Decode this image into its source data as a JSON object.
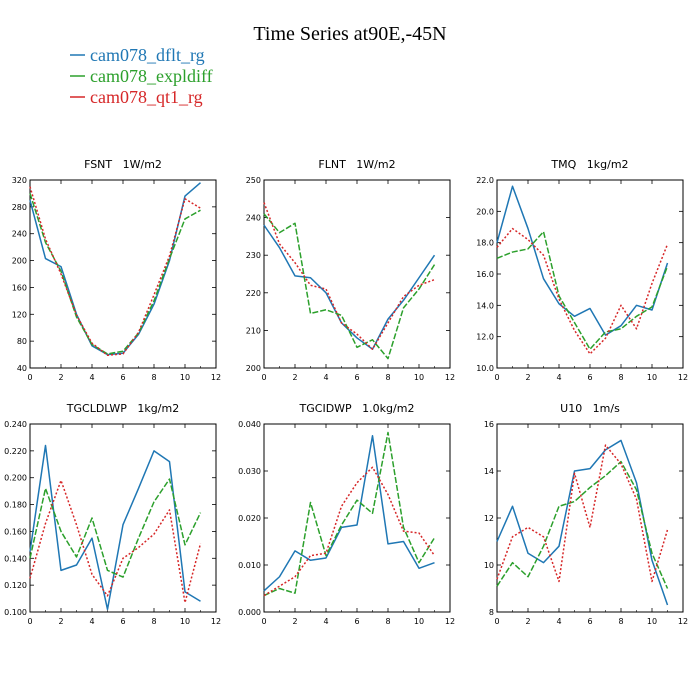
{
  "figure": {
    "title": "Time Series at90E,-45N",
    "legend": [
      {
        "name": "cam078_dflt_rg",
        "color": "#1f77b4"
      },
      {
        "name": "cam078_expldiff",
        "color": "#2ca02c"
      },
      {
        "name": "cam078_qt1_rg",
        "color": "#d62728"
      }
    ]
  },
  "chart_data": [
    {
      "type": "line",
      "var": "FSNT",
      "units": "1W/m2",
      "x": [
        0,
        1,
        2,
        3,
        4,
        5,
        6,
        7,
        8,
        9,
        10,
        11
      ],
      "xlim": [
        0,
        12
      ],
      "xticks": [
        0,
        2,
        4,
        6,
        8,
        10,
        12
      ],
      "ylim": [
        40,
        320
      ],
      "yticks": [
        40,
        80,
        120,
        160,
        200,
        240,
        280,
        320
      ],
      "ytick_labels": [
        "40",
        "80",
        "120",
        "160",
        "200",
        "240",
        "280",
        "320"
      ],
      "series": [
        {
          "name": "cam078_dflt_rg",
          "values": [
            290,
            203,
            191,
            120,
            73,
            60,
            62,
            90,
            135,
            200,
            296,
            316
          ]
        },
        {
          "name": "cam078_expldiff",
          "values": [
            300,
            227,
            184,
            116,
            75,
            61,
            65,
            92,
            140,
            203,
            262,
            275
          ]
        },
        {
          "name": "cam078_qt1_rg",
          "values": [
            310,
            232,
            180,
            119,
            77,
            59,
            61,
            93,
            149,
            207,
            292,
            278
          ]
        }
      ]
    },
    {
      "type": "line",
      "var": "FLNT",
      "units": "1W/m2",
      "x": [
        0,
        1,
        2,
        3,
        4,
        5,
        6,
        7,
        8,
        9,
        10,
        11
      ],
      "xlim": [
        0,
        12
      ],
      "xticks": [
        0,
        2,
        4,
        6,
        8,
        10,
        12
      ],
      "ylim": [
        200,
        250
      ],
      "yticks": [
        200,
        210,
        220,
        230,
        240,
        250
      ],
      "ytick_labels": [
        "200",
        "210",
        "220",
        "230",
        "240",
        "250"
      ],
      "series": [
        {
          "name": "cam078_dflt_rg",
          "values": [
            238,
            232,
            224.5,
            224,
            220,
            212,
            208,
            205,
            213,
            218,
            224,
            230
          ]
        },
        {
          "name": "cam078_expldiff",
          "values": [
            241,
            236,
            238.5,
            214.5,
            215.5,
            214,
            205.5,
            207.5,
            202.5,
            216,
            221,
            227.5
          ]
        },
        {
          "name": "cam078_qt1_rg",
          "values": [
            244,
            233,
            228,
            222,
            221,
            212,
            209,
            205,
            212,
            219,
            222,
            223.5
          ]
        }
      ]
    },
    {
      "type": "line",
      "var": "TMQ",
      "units": "1kg/m2",
      "x": [
        0,
        1,
        2,
        3,
        4,
        5,
        6,
        7,
        8,
        9,
        10,
        11
      ],
      "xlim": [
        0,
        12
      ],
      "xticks": [
        0,
        2,
        4,
        6,
        8,
        10,
        12
      ],
      "ylim": [
        10,
        22
      ],
      "yticks": [
        10,
        12,
        14,
        16,
        18,
        20,
        22
      ],
      "ytick_labels": [
        "10.0",
        "12.0",
        "14.0",
        "16.0",
        "18.0",
        "20.0",
        "22.0"
      ],
      "series": [
        {
          "name": "cam078_dflt_rg",
          "values": [
            18.0,
            21.6,
            18.9,
            15.7,
            14.1,
            13.3,
            13.8,
            12.1,
            12.7,
            14.0,
            13.7,
            16.7
          ]
        },
        {
          "name": "cam078_expldiff",
          "values": [
            17.0,
            17.4,
            17.6,
            18.7,
            14.6,
            12.9,
            11.2,
            12.3,
            12.5,
            13.3,
            13.9,
            16.5
          ]
        },
        {
          "name": "cam078_qt1_rg",
          "values": [
            17.7,
            18.9,
            18.2,
            17.2,
            14.4,
            12.4,
            10.9,
            11.9,
            14.0,
            12.5,
            15.4,
            17.9
          ]
        }
      ]
    },
    {
      "type": "line",
      "var": "TGCLDLWP",
      "units": "1kg/m2",
      "x": [
        0,
        1,
        2,
        3,
        4,
        5,
        6,
        7,
        8,
        9,
        10,
        11
      ],
      "xlim": [
        0,
        12
      ],
      "xticks": [
        0,
        2,
        4,
        6,
        8,
        10,
        12
      ],
      "ylim": [
        0.1,
        0.24
      ],
      "yticks": [
        0.1,
        0.12,
        0.14,
        0.16,
        0.18,
        0.2,
        0.22,
        0.24
      ],
      "ytick_labels": [
        "0.100",
        "0.120",
        "0.140",
        "0.160",
        "0.180",
        "0.200",
        "0.220",
        "0.240"
      ],
      "series": [
        {
          "name": "cam078_dflt_rg",
          "values": [
            0.145,
            0.224,
            0.131,
            0.135,
            0.155,
            0.102,
            0.165,
            0.192,
            0.22,
            0.212,
            0.115,
            0.108
          ]
        },
        {
          "name": "cam078_expldiff",
          "values": [
            0.14,
            0.192,
            0.16,
            0.141,
            0.17,
            0.131,
            0.126,
            0.155,
            0.182,
            0.199,
            0.15,
            0.174
          ]
        },
        {
          "name": "cam078_qt1_rg",
          "values": [
            0.125,
            0.166,
            0.198,
            0.165,
            0.128,
            0.112,
            0.14,
            0.148,
            0.158,
            0.176,
            0.107,
            0.151
          ]
        }
      ]
    },
    {
      "type": "line",
      "var": "TGCIDWP",
      "units": "1.0kg/m2",
      "x": [
        0,
        1,
        2,
        3,
        4,
        5,
        6,
        7,
        8,
        9,
        10,
        11
      ],
      "xlim": [
        0,
        12
      ],
      "xticks": [
        0,
        2,
        4,
        6,
        8,
        10,
        12
      ],
      "ylim": [
        0,
        0.04
      ],
      "yticks": [
        0.0,
        0.01,
        0.02,
        0.03,
        0.04
      ],
      "ytick_labels": [
        "0.000",
        "0.010",
        "0.020",
        "0.030",
        "0.040"
      ],
      "series": [
        {
          "name": "cam078_dflt_rg",
          "values": [
            0.0045,
            0.0075,
            0.013,
            0.011,
            0.0115,
            0.018,
            0.0185,
            0.0375,
            0.0145,
            0.015,
            0.0093,
            0.0105
          ]
        },
        {
          "name": "cam078_expldiff",
          "values": [
            0.0035,
            0.005,
            0.004,
            0.0233,
            0.012,
            0.0185,
            0.0238,
            0.021,
            0.0382,
            0.018,
            0.0105,
            0.0158
          ]
        },
        {
          "name": "cam078_qt1_rg",
          "values": [
            0.0035,
            0.0055,
            0.0075,
            0.012,
            0.0125,
            0.0225,
            0.0275,
            0.0308,
            0.025,
            0.0172,
            0.0168,
            0.012
          ]
        }
      ]
    },
    {
      "type": "line",
      "var": "U10",
      "units": "1m/s",
      "x": [
        0,
        1,
        2,
        3,
        4,
        5,
        6,
        7,
        8,
        9,
        10,
        11
      ],
      "xlim": [
        0,
        12
      ],
      "xticks": [
        0,
        2,
        4,
        6,
        8,
        10,
        12
      ],
      "ylim": [
        8,
        16
      ],
      "yticks": [
        8,
        10,
        12,
        14,
        16
      ],
      "ytick_labels": [
        "8",
        "10",
        "12",
        "14",
        "16"
      ],
      "series": [
        {
          "name": "cam078_dflt_rg",
          "values": [
            11.0,
            12.5,
            10.5,
            10.1,
            10.8,
            14.0,
            14.1,
            14.9,
            15.3,
            13.5,
            10.2,
            8.3
          ]
        },
        {
          "name": "cam078_expldiff",
          "values": [
            9.1,
            10.1,
            9.5,
            10.8,
            12.5,
            12.7,
            13.3,
            13.8,
            14.4,
            13.2,
            10.5,
            9.0
          ]
        },
        {
          "name": "cam078_qt1_rg",
          "values": [
            9.4,
            11.2,
            11.6,
            11.2,
            9.3,
            13.9,
            11.6,
            15.1,
            14.3,
            12.8,
            9.3,
            11.5
          ]
        }
      ]
    }
  ]
}
